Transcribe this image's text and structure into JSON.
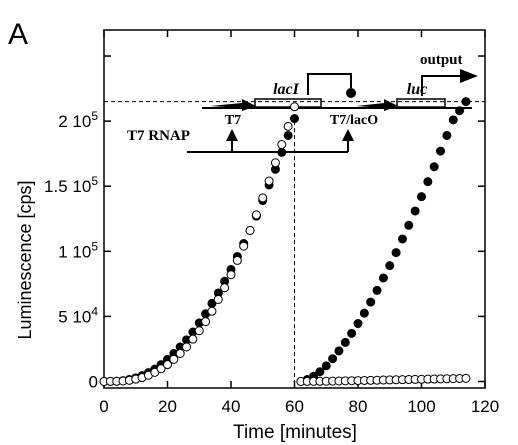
{
  "panel_label": "A",
  "diagram": {
    "gene_lacI": "lacI",
    "gene_luc": "luc",
    "promoter_t7": "T7",
    "promoter_t7_laco": "T7/lacO",
    "polymerase": "T7 RNAP",
    "output": "output"
  },
  "chart_data": {
    "type": "scatter",
    "xlabel": "Time [minutes]",
    "ylabel": "Luminescence [cps]",
    "xlim": [
      0,
      120
    ],
    "ylim": [
      -5000,
      270000
    ],
    "x_ticks": [
      0,
      20,
      40,
      60,
      80,
      100,
      120
    ],
    "x_tick_labels": [
      "0",
      "20",
      "40",
      "60",
      "80",
      "100",
      "120"
    ],
    "y_ticks": [
      0,
      50000,
      100000,
      150000,
      200000
    ],
    "y_tick_labels": [
      {
        "mantissa": "0",
        "exp": ""
      },
      {
        "mantissa": "5 10",
        "exp": "4"
      },
      {
        "mantissa": "1 10",
        "exp": "5"
      },
      {
        "mantissa": "1.5 10",
        "exp": "5"
      },
      {
        "mantissa": "2 10",
        "exp": "5"
      }
    ],
    "reference_lines": {
      "x": 60,
      "y": 215000
    },
    "series": [
      {
        "marker": "filled",
        "x": [
          0,
          2,
          4,
          6,
          8,
          10,
          12,
          14,
          16,
          18,
          20,
          22,
          24,
          26,
          28,
          30,
          32,
          34,
          36,
          38,
          40,
          42,
          44,
          46,
          48,
          50,
          52,
          54,
          56,
          58,
          60
        ],
        "y": [
          0,
          100,
          200,
          700,
          1500,
          2800,
          4500,
          6800,
          9500,
          13000,
          17000,
          21500,
          26500,
          32000,
          38000,
          45000,
          52000,
          60000,
          68000,
          77000,
          86000,
          96000,
          106000,
          116000,
          127000,
          139000,
          151000,
          163000,
          176000,
          189000,
          202000
        ]
      },
      {
        "marker": "open",
        "x": [
          0,
          2,
          4,
          6,
          8,
          10,
          12,
          14,
          16,
          18,
          20,
          22,
          24,
          26,
          28,
          30,
          32,
          34,
          36,
          38,
          40,
          42,
          44,
          46,
          48,
          50,
          52,
          54,
          56,
          58,
          60
        ],
        "y": [
          0,
          80,
          150,
          400,
          900,
          1800,
          3000,
          4800,
          7000,
          9800,
          13000,
          17000,
          21500,
          26500,
          32500,
          39000,
          46000,
          54000,
          63000,
          72000,
          82000,
          93000,
          104000,
          116000,
          128000,
          141000,
          154000,
          168000,
          182000,
          196000,
          211000
        ]
      },
      {
        "marker": "filled",
        "x": [
          62,
          64,
          66,
          68,
          70,
          72,
          74,
          76,
          78,
          80,
          82,
          84,
          86,
          88,
          90,
          92,
          94,
          96,
          98,
          100,
          102,
          104,
          106,
          108,
          110,
          112,
          114
        ],
        "y": [
          0,
          1500,
          4000,
          7500,
          12000,
          17500,
          23500,
          30000,
          37000,
          44500,
          52500,
          61000,
          70000,
          79500,
          89000,
          99000,
          109500,
          120000,
          131000,
          142000,
          153500,
          165000,
          177000,
          189000,
          201000,
          208000,
          215000
        ]
      },
      {
        "marker": "open",
        "x": [
          62,
          64,
          66,
          68,
          70,
          72,
          74,
          76,
          78,
          80,
          82,
          84,
          86,
          88,
          90,
          92,
          94,
          96,
          98,
          100,
          102,
          104,
          106,
          108,
          110,
          112,
          114
        ],
        "y": [
          0,
          50,
          100,
          150,
          200,
          300,
          400,
          500,
          600,
          700,
          800,
          900,
          1000,
          1100,
          1200,
          1300,
          1400,
          1500,
          1600,
          1700,
          1800,
          1900,
          2000,
          2100,
          2200,
          2300,
          2400
        ]
      }
    ]
  }
}
